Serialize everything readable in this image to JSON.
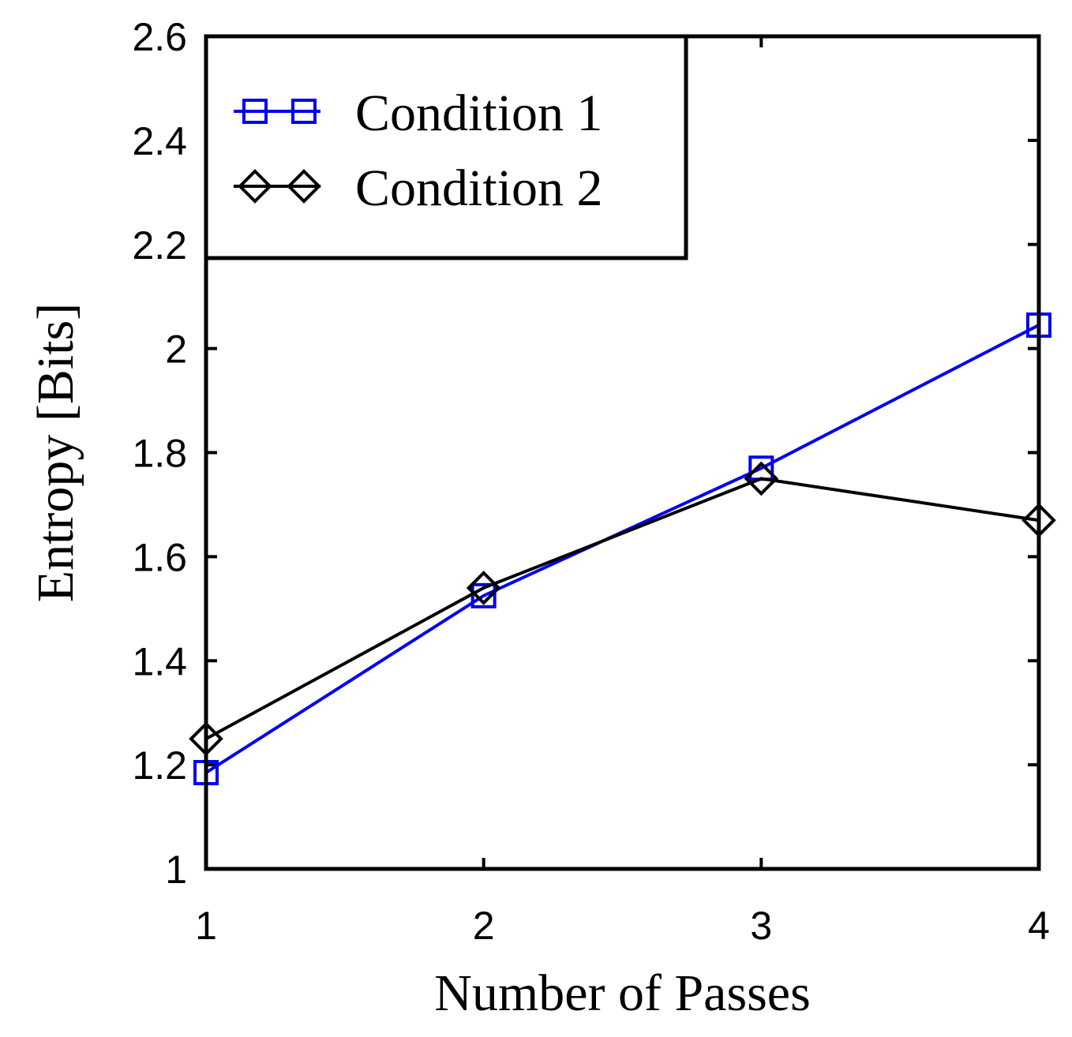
{
  "chart_data": {
    "type": "line",
    "title": "",
    "xlabel": "Number of Passes",
    "ylabel": "Entropy [Bits]",
    "x": [
      1,
      2,
      3,
      4
    ],
    "xlim": [
      1,
      4
    ],
    "ylim": [
      1,
      2.6
    ],
    "x_ticks": [
      "1",
      "2",
      "3",
      "4"
    ],
    "y_ticks": [
      "1",
      "1.2",
      "1.4",
      "1.6",
      "1.8",
      "2",
      "2.2",
      "2.4",
      "2.6"
    ],
    "grid": false,
    "legend_position": "top-left",
    "series": [
      {
        "name": "Condition 1",
        "color": "#0000ee",
        "marker": "square",
        "values": [
          1.185,
          1.525,
          1.77,
          2.045
        ]
      },
      {
        "name": "Condition 2",
        "color": "#000000",
        "marker": "diamond",
        "values": [
          1.25,
          1.54,
          1.75,
          1.67
        ]
      }
    ]
  }
}
